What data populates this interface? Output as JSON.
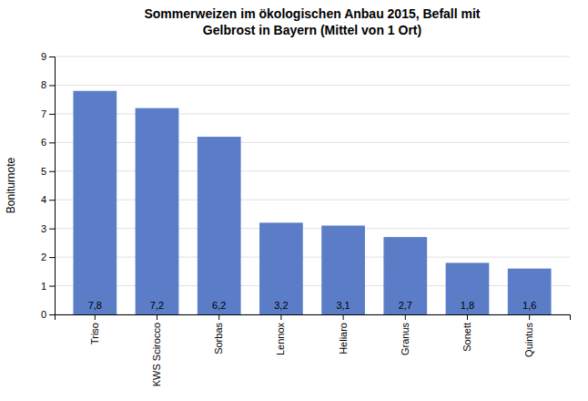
{
  "chart_data": {
    "type": "bar",
    "title": "Sommerweizen im ökologischen Anbau 2015, Befall mit\nGelbrost in Bayern (Mittel von 1 Ort)",
    "categories": [
      "Triso",
      "KWS Scirocco",
      "Sorbas",
      "Lennox",
      "Heliaro",
      "Granus",
      "Sonett",
      "Quintus"
    ],
    "values": [
      7.8,
      7.2,
      6.2,
      3.2,
      3.1,
      2.7,
      1.8,
      1.6
    ],
    "value_labels": [
      "7,8",
      "7,2",
      "6,2",
      "3,2",
      "3,1",
      "2,7",
      "1,8",
      "1,6"
    ],
    "data_labels": true,
    "color": "#5B7DC8",
    "ylabel": "Boniturnote",
    "ylim": [
      0,
      9
    ],
    "yticks": [
      0,
      1,
      2,
      3,
      4,
      5,
      6,
      7,
      8,
      9
    ],
    "grid": true
  }
}
